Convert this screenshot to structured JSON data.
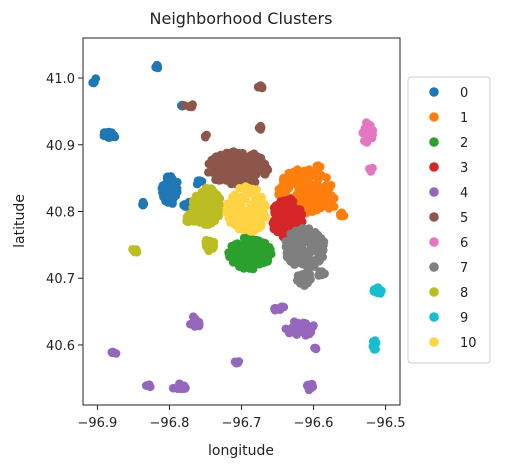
{
  "chart_data": {
    "type": "scatter",
    "title": "Neighborhood Clusters",
    "xlabel": "longitude",
    "ylabel": "latitude",
    "xlim": [
      -96.92,
      -96.48
    ],
    "ylim": [
      40.51,
      41.06
    ],
    "xticks": [
      -96.9,
      -96.8,
      -96.7,
      -96.6,
      -96.5
    ],
    "xtick_labels": [
      "−96.9",
      "−96.8",
      "−96.7",
      "−96.6",
      "−96.5"
    ],
    "yticks": [
      40.6,
      40.7,
      40.8,
      40.9,
      41.0
    ],
    "ytick_labels": [
      "40.6",
      "40.7",
      "40.8",
      "40.9",
      "41.0"
    ],
    "grid": false,
    "legend_position": "right",
    "series": [
      {
        "name": "0",
        "color": "#1f77b4",
        "clusters": [
          {
            "x": -96.904,
            "y": 40.996,
            "rx": 0.004,
            "ry": 0.004,
            "n": 6
          },
          {
            "x": -96.818,
            "y": 41.017,
            "rx": 0.003,
            "ry": 0.003,
            "n": 5
          },
          {
            "x": -96.883,
            "y": 40.915,
            "rx": 0.009,
            "ry": 0.007,
            "n": 18
          },
          {
            "x": -96.782,
            "y": 40.958,
            "rx": 0.004,
            "ry": 0.003,
            "n": 5
          },
          {
            "x": -96.799,
            "y": 40.833,
            "rx": 0.012,
            "ry": 0.022,
            "n": 40
          },
          {
            "x": -96.776,
            "y": 40.81,
            "rx": 0.005,
            "ry": 0.006,
            "n": 8
          },
          {
            "x": -96.837,
            "y": 40.812,
            "rx": 0.003,
            "ry": 0.003,
            "n": 4
          },
          {
            "x": -96.758,
            "y": 40.843,
            "rx": 0.004,
            "ry": 0.004,
            "n": 5
          }
        ]
      },
      {
        "name": "1",
        "color": "#ff7f0e",
        "clusters": [
          {
            "x": -96.612,
            "y": 40.83,
            "rx": 0.038,
            "ry": 0.035,
            "n": 160
          },
          {
            "x": -96.583,
            "y": 40.815,
            "rx": 0.015,
            "ry": 0.012,
            "n": 30
          },
          {
            "x": -96.56,
            "y": 40.795,
            "rx": 0.005,
            "ry": 0.004,
            "n": 6
          },
          {
            "x": -96.593,
            "y": 40.868,
            "rx": 0.003,
            "ry": 0.003,
            "n": 4
          }
        ]
      },
      {
        "name": "2",
        "color": "#2ca02c",
        "clusters": [
          {
            "x": -96.688,
            "y": 40.738,
            "rx": 0.03,
            "ry": 0.025,
            "n": 150
          }
        ]
      },
      {
        "name": "3",
        "color": "#d62728",
        "clusters": [
          {
            "x": -96.637,
            "y": 40.79,
            "rx": 0.022,
            "ry": 0.03,
            "n": 110
          }
        ]
      },
      {
        "name": "4",
        "color": "#9467bd",
        "clusters": [
          {
            "x": -96.877,
            "y": 40.588,
            "rx": 0.004,
            "ry": 0.004,
            "n": 5
          },
          {
            "x": -96.83,
            "y": 40.538,
            "rx": 0.004,
            "ry": 0.003,
            "n": 4
          },
          {
            "x": -96.786,
            "y": 40.537,
            "rx": 0.01,
            "ry": 0.005,
            "n": 14
          },
          {
            "x": -96.706,
            "y": 40.573,
            "rx": 0.004,
            "ry": 0.004,
            "n": 5
          },
          {
            "x": -96.765,
            "y": 40.633,
            "rx": 0.008,
            "ry": 0.01,
            "n": 10
          },
          {
            "x": -96.648,
            "y": 40.655,
            "rx": 0.008,
            "ry": 0.004,
            "n": 10
          },
          {
            "x": -96.62,
            "y": 40.625,
            "rx": 0.022,
            "ry": 0.012,
            "n": 30
          },
          {
            "x": -96.599,
            "y": 40.595,
            "rx": 0.003,
            "ry": 0.003,
            "n": 3
          },
          {
            "x": -96.604,
            "y": 40.537,
            "rx": 0.007,
            "ry": 0.007,
            "n": 10
          }
        ]
      },
      {
        "name": "5",
        "color": "#8c564b",
        "clusters": [
          {
            "x": -96.705,
            "y": 40.865,
            "rx": 0.045,
            "ry": 0.025,
            "n": 170
          },
          {
            "x": -96.675,
            "y": 40.986,
            "rx": 0.004,
            "ry": 0.004,
            "n": 6
          },
          {
            "x": -96.772,
            "y": 40.958,
            "rx": 0.008,
            "ry": 0.003,
            "n": 6
          },
          {
            "x": -96.673,
            "y": 40.925,
            "rx": 0.003,
            "ry": 0.003,
            "n": 4
          },
          {
            "x": -96.75,
            "y": 40.913,
            "rx": 0.003,
            "ry": 0.003,
            "n": 4
          }
        ]
      },
      {
        "name": "6",
        "color": "#e377c2",
        "clusters": [
          {
            "x": -96.525,
            "y": 40.918,
            "rx": 0.008,
            "ry": 0.016,
            "n": 30
          },
          {
            "x": -96.52,
            "y": 40.863,
            "rx": 0.003,
            "ry": 0.003,
            "n": 4
          }
        ]
      },
      {
        "name": "7",
        "color": "#7f7f7f",
        "clusters": [
          {
            "x": -96.612,
            "y": 40.745,
            "rx": 0.028,
            "ry": 0.032,
            "n": 150
          },
          {
            "x": -96.613,
            "y": 40.7,
            "rx": 0.01,
            "ry": 0.012,
            "n": 18
          },
          {
            "x": -96.588,
            "y": 40.705,
            "rx": 0.005,
            "ry": 0.008,
            "n": 8
          }
        ]
      },
      {
        "name": "8",
        "color": "#bcbd22",
        "clusters": [
          {
            "x": -96.748,
            "y": 40.808,
            "rx": 0.02,
            "ry": 0.028,
            "n": 90
          },
          {
            "x": -96.771,
            "y": 40.79,
            "rx": 0.008,
            "ry": 0.008,
            "n": 16
          },
          {
            "x": -96.744,
            "y": 40.75,
            "rx": 0.007,
            "ry": 0.01,
            "n": 14
          },
          {
            "x": -96.849,
            "y": 40.74,
            "rx": 0.004,
            "ry": 0.005,
            "n": 8
          }
        ]
      },
      {
        "name": "9",
        "color": "#17becf",
        "clusters": [
          {
            "x": -96.511,
            "y": 40.681,
            "rx": 0.006,
            "ry": 0.005,
            "n": 12
          },
          {
            "x": -96.515,
            "y": 40.6,
            "rx": 0.003,
            "ry": 0.008,
            "n": 8
          }
        ]
      },
      {
        "name": "10",
        "color": "#ffd343",
        "clusters": [
          {
            "x": -96.693,
            "y": 40.802,
            "rx": 0.028,
            "ry": 0.036,
            "n": 150
          }
        ]
      }
    ]
  }
}
